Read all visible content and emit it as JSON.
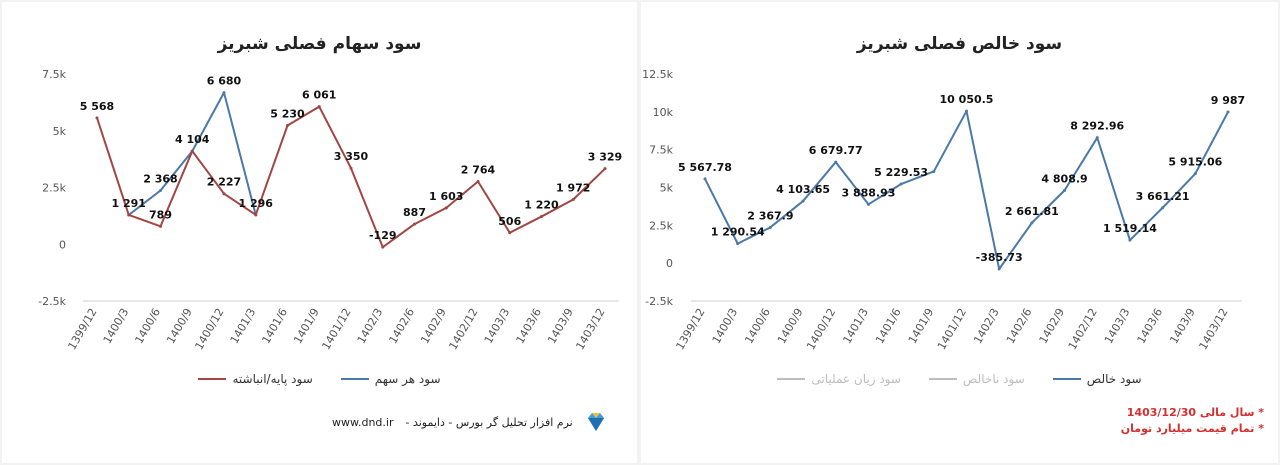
{
  "colors": {
    "blue": "#4a79aa",
    "red": "#a34542",
    "gray": "#bdbdbd",
    "note_red": "#d32f2f"
  },
  "left": {
    "title": "سود سهام فصلی شبریز",
    "legend": [
      {
        "label": "سود هر سهم",
        "color": "#4a79aa"
      },
      {
        "label": "سود پایه/انباشته",
        "color": "#a34542"
      }
    ]
  },
  "right": {
    "title": "سود خالص فصلی شبریز",
    "legend": [
      {
        "label": "سود خالص",
        "color": "#4a79aa"
      },
      {
        "label": "سود ناخالص",
        "color": "#bdbdbd"
      },
      {
        "label": "سود زیان عملیاتی",
        "color": "#bdbdbd"
      }
    ]
  },
  "footer": {
    "site": "www.dnd.ir",
    "desc": "نرم افزار تحلیل گر بورس - دایموند -",
    "notes": [
      "* سال مالی 1403/12/30",
      "* تمام قیمت میلیارد تومان"
    ]
  },
  "chart_data": [
    {
      "type": "line",
      "title": "سود سهام فصلی شبریز",
      "categories": [
        "1399/12",
        "1400/3",
        "1400/6",
        "1400/9",
        "1400/12",
        "1401/3",
        "1401/6",
        "1401/9",
        "1401/12",
        "1402/3",
        "1402/6",
        "1402/9",
        "1402/12",
        "1403/3",
        "1403/6",
        "1403/9",
        "1403/12"
      ],
      "ylim": [
        -2500,
        7500
      ],
      "yticks": [
        -2500,
        0,
        2500,
        5000,
        7500
      ],
      "ytick_labels": [
        "-2.5k",
        "0",
        "2.5k",
        "5k",
        "7.5k"
      ],
      "grid": false,
      "legend_position": "bottom",
      "series": [
        {
          "name": "سود هر سهم",
          "color": "#4a79aa",
          "values": [
            null,
            1291,
            2368,
            4104,
            6680,
            1296,
            null,
            null,
            null,
            null,
            null,
            null,
            null,
            null,
            null,
            null,
            null
          ],
          "labels": [
            "",
            "",
            "2 368",
            "4 104",
            "6 680",
            "1 296",
            "",
            "",
            "",
            "",
            "",
            "",
            "",
            "",
            "",
            "",
            ""
          ]
        },
        {
          "name": "سود پایه/انباشته",
          "color": "#a34542",
          "values": [
            5568,
            1291,
            789,
            4104,
            2227,
            1296,
            5230,
            6061,
            3350,
            -129,
            887,
            1603,
            2764,
            506,
            1220,
            1972,
            3329
          ],
          "labels": [
            "5 568",
            "1 291",
            "789",
            "",
            "2 227",
            "",
            "5 230",
            "6 061",
            "3 350",
            "-129",
            "887",
            "1 603",
            "2 764",
            "506",
            "1 220",
            "1 972",
            "3 329"
          ]
        }
      ]
    },
    {
      "type": "line",
      "title": "سود خالص فصلی شبریز",
      "categories": [
        "1399/12",
        "1400/3",
        "1400/6",
        "1400/9",
        "1400/12",
        "1401/3",
        "1401/6",
        "1401/9",
        "1401/12",
        "1402/3",
        "1402/6",
        "1402/9",
        "1402/12",
        "1403/3",
        "1403/6",
        "1403/9",
        "1403/12"
      ],
      "ylim": [
        -2500,
        12500
      ],
      "yticks": [
        -2500,
        0,
        2500,
        5000,
        7500,
        10000,
        12500
      ],
      "ytick_labels": [
        "-2.5k",
        "0",
        "2.5k",
        "5k",
        "7.5k",
        "10k",
        "12.5k"
      ],
      "grid": false,
      "legend_position": "bottom",
      "series": [
        {
          "name": "سود خالص",
          "color": "#4a79aa",
          "values": [
            5567.78,
            1290.54,
            2367.9,
            4103.65,
            6679.77,
            3888.93,
            5229.53,
            6061,
            10050.5,
            -385.73,
            2661.81,
            4808.9,
            8292.96,
            1519.14,
            3661.21,
            5915.06,
            9987
          ],
          "labels": [
            "5 567.78",
            "1 290.54",
            "2 367.9",
            "4 103.65",
            "6 679.77",
            "3 888.93",
            "5 229.53",
            "",
            "10 050.5",
            "-385.73",
            "2 661.81",
            "4 808.9",
            "8 292.96",
            "1 519.14",
            "3 661.21",
            "5 915.06",
            "9 987"
          ]
        }
      ]
    }
  ]
}
